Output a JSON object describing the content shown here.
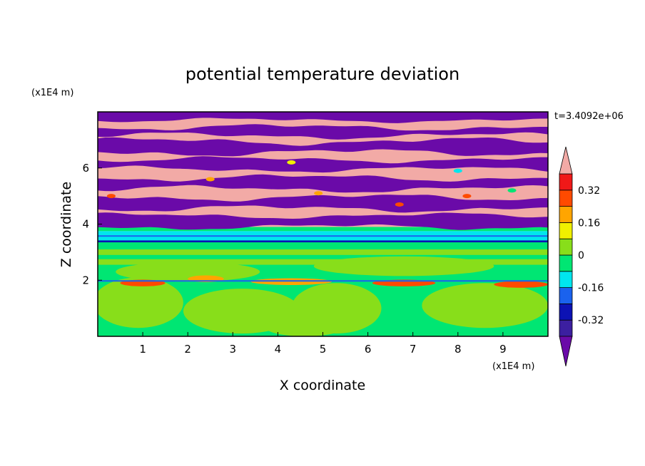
{
  "chart_data": {
    "type": "heatmap",
    "title": "potential temperature deviation",
    "time_label": "t=3.4092e+06",
    "xlabel": "X coordinate",
    "ylabel": "Z coordinate",
    "x_unit": "(x1E4 m)",
    "y_unit": "(x1E4 m)",
    "xlim": [
      0,
      10
    ],
    "ylim": [
      0,
      8
    ],
    "x_ticks": [
      "1",
      "2",
      "3",
      "4",
      "5",
      "6",
      "7",
      "8",
      "9"
    ],
    "y_ticks": [
      "2",
      "4",
      "6"
    ],
    "colorbar": {
      "labels": [
        "0.32",
        "0.16",
        "0",
        "-0.16",
        "-0.32"
      ],
      "levels": [
        -0.4,
        -0.32,
        -0.24,
        -0.16,
        -0.08,
        0,
        0.08,
        0.16,
        0.24,
        0.32,
        0.4
      ],
      "colors": [
        "#6a0aa8",
        "#3c1fa0",
        "#0c12b4",
        "#1a62ee",
        "#00e6ee",
        "#00e673",
        "#88de1a",
        "#f0f000",
        "#ffa500",
        "#ff4a00",
        "#f01818",
        "#f2aaa6"
      ],
      "extend": "both"
    },
    "palette": {
      "purple": "#6a0aa8",
      "pink": "#f2aaa6",
      "green": "#00e673",
      "lime": "#88de1a",
      "cyan": "#00e6ee",
      "blue": "#1a62ee",
      "navy": "#0c12b4",
      "orange": "#ffa500",
      "red": "#ff4a00",
      "yellow": "#f0f000"
    }
  }
}
